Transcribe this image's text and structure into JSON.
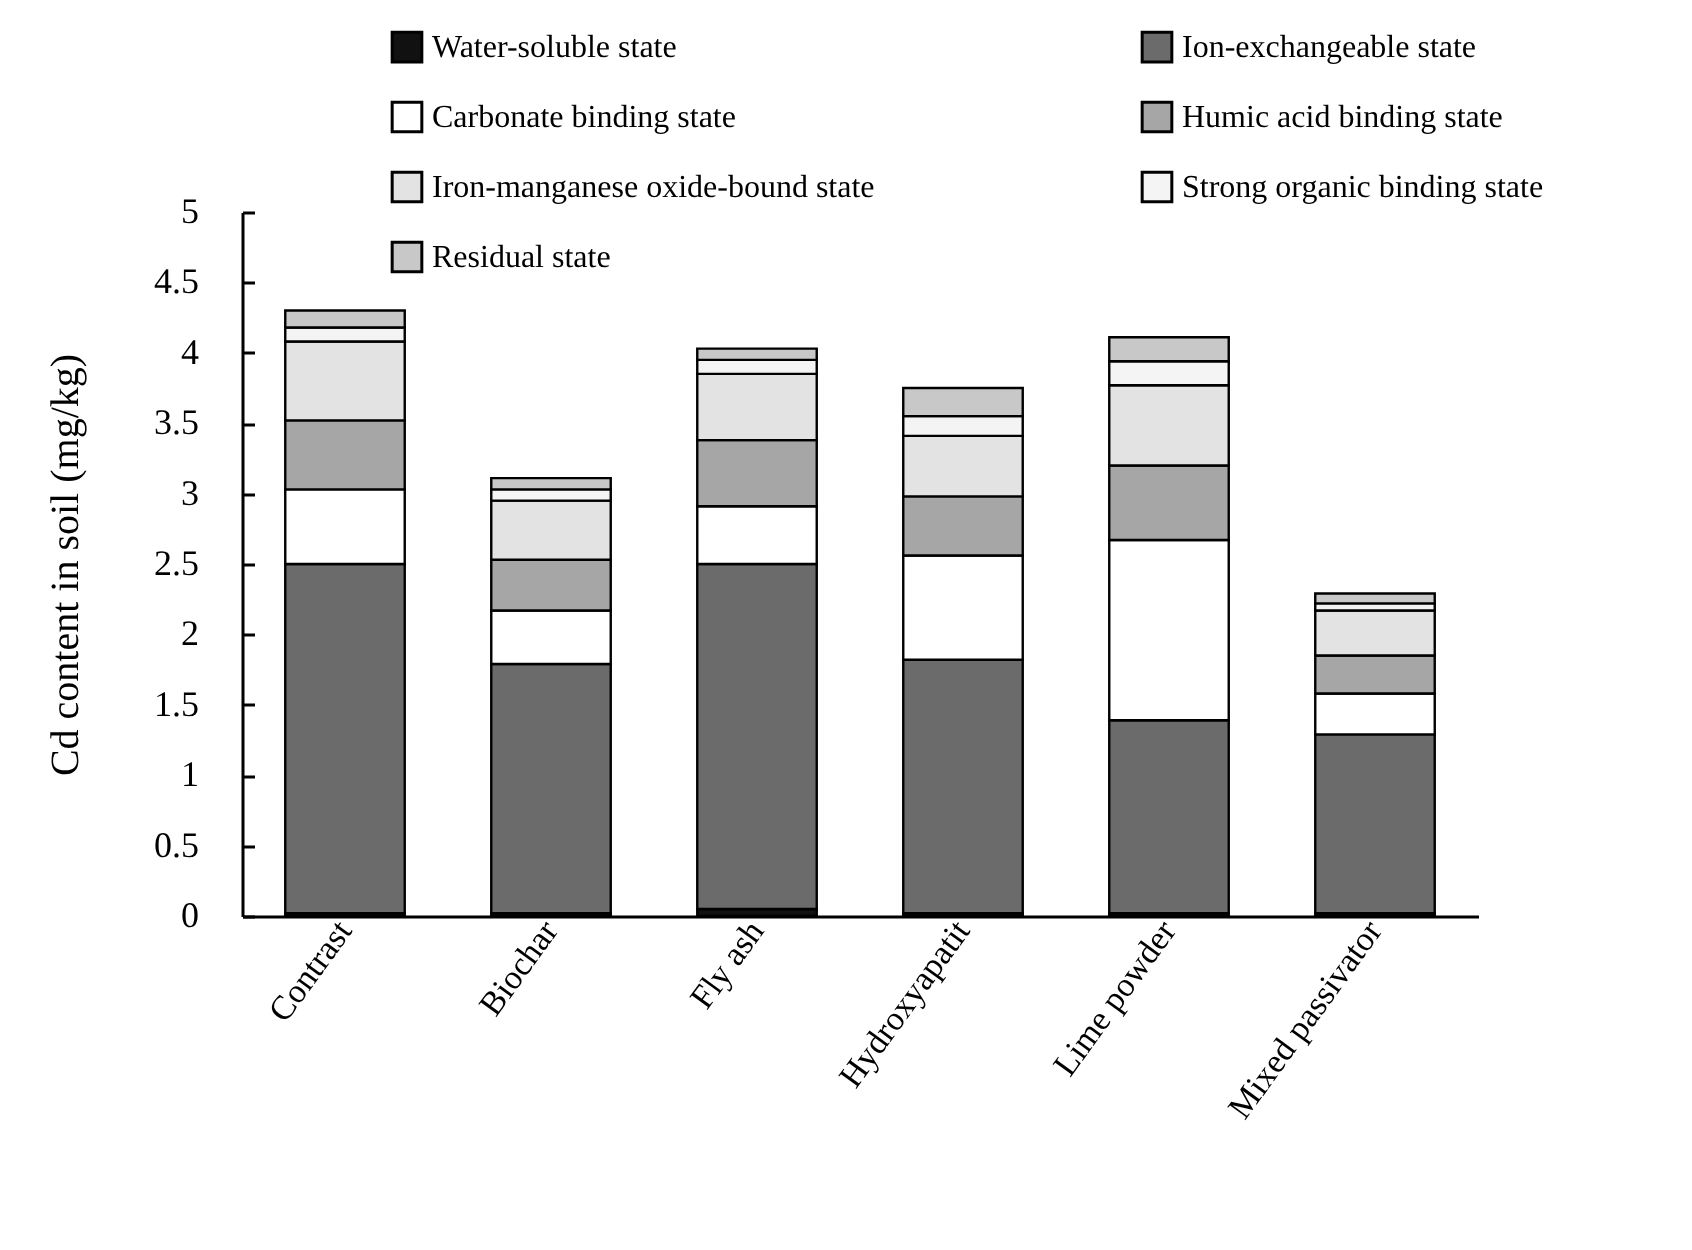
{
  "chart_data": {
    "type": "bar",
    "stacked": true,
    "ylabel": "Cd content in soil (mg/kg)",
    "categories": [
      "Contrast",
      "Biochar",
      "Fly ash",
      "Hydroxyapatit",
      "Lime powder",
      "Mixed passivator"
    ],
    "series": [
      {
        "name": "Water-soluble state",
        "color": "#111111",
        "values": [
          0.02,
          0.02,
          0.05,
          0.02,
          0.02,
          0.02
        ]
      },
      {
        "name": "Ion-exchangeable state",
        "color": "#6b6b6b",
        "values": [
          2.48,
          1.77,
          2.45,
          1.8,
          1.37,
          1.27
        ]
      },
      {
        "name": "Carbonate binding state",
        "color": "#ffffff",
        "values": [
          0.53,
          0.38,
          0.41,
          0.74,
          1.28,
          0.29
        ]
      },
      {
        "name": "Humic acid binding state",
        "color": "#a6a6a6",
        "values": [
          0.49,
          0.36,
          0.47,
          0.42,
          0.53,
          0.27
        ]
      },
      {
        "name": "Iron-manganese oxide-bound state",
        "color": "#e3e3e3",
        "values": [
          0.56,
          0.42,
          0.47,
          0.43,
          0.57,
          0.32
        ]
      },
      {
        "name": "Strong organic binding state",
        "color": "#f4f4f4",
        "values": [
          0.1,
          0.08,
          0.1,
          0.14,
          0.17,
          0.05
        ]
      },
      {
        "name": "Residual state",
        "color": "#c8c8c8",
        "values": [
          0.12,
          0.08,
          0.08,
          0.2,
          0.17,
          0.07
        ]
      }
    ],
    "ylim": [
      0,
      5
    ],
    "yticks": [
      0,
      0.5,
      1,
      1.5,
      2,
      2.5,
      3,
      3.5,
      4,
      4.5,
      5
    ],
    "grid": false,
    "legend": "top"
  }
}
